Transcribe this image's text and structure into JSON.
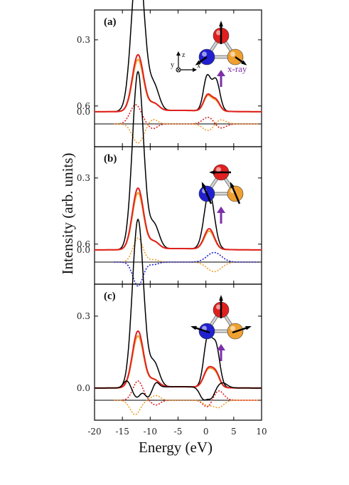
{
  "chart_data": {
    "type": "line",
    "xlabel": "Energy (eV)",
    "ylabel": "Intensity (arb. units)",
    "xlim": [
      -20,
      10
    ],
    "x_ticks": [
      "-20",
      "-15",
      "-10",
      "-5",
      "0",
      "5",
      "10"
    ],
    "y_ticks": [
      "0.0",
      "0.3",
      "0.6"
    ],
    "ylim": [
      -0.2,
      0.8
    ],
    "inset_axes": {
      "z": "z",
      "x": "x",
      "y": "y",
      "arrow_label": "x-ray"
    },
    "colors": {
      "total": "#000000",
      "red": "#e02020",
      "orange": "#f0a030",
      "blue": "#2020d0",
      "xray": "#7b2fa8"
    },
    "panels": [
      {
        "label": "(a)",
        "series": [
          {
            "color": "#000000",
            "style": "solid",
            "peaks": [
              [
                -12.2,
                0.67,
                1.1
              ],
              [
                -9.3,
                0.1,
                0.9
              ],
              [
                0.2,
                0.14,
                0.65
              ],
              [
                1.8,
                0.13,
                0.7
              ]
            ]
          },
          {
            "color": "#f0a030",
            "style": "solid",
            "peaks": [
              [
                -12.2,
                0.215,
                1.0
              ],
              [
                -9.3,
                0.03,
                0.9
              ],
              [
                0.3,
                0.06,
                0.7
              ],
              [
                1.8,
                0.04,
                0.7
              ]
            ]
          },
          {
            "color": "#e02020",
            "style": "solid",
            "peaks": [
              [
                -12.2,
                0.235,
                1.0
              ],
              [
                -9.3,
                0.03,
                0.9
              ],
              [
                0.3,
                0.065,
                0.7
              ],
              [
                1.8,
                0.045,
                0.7
              ]
            ]
          },
          {
            "color": "#e02020",
            "style": "dotted",
            "peaks": [
              [
                -12.6,
                0.08,
                1.0
              ],
              [
                -9.5,
                -0.02,
                0.8
              ],
              [
                0.5,
                0.03,
                1.0
              ],
              [
                2.5,
                -0.02,
                1.0
              ]
            ]
          },
          {
            "color": "#f0a030",
            "style": "dotted",
            "peaks": [
              [
                -12.2,
                -0.08,
                1.0
              ],
              [
                -9.5,
                0.02,
                0.8
              ],
              [
                0.5,
                -0.03,
                1.0
              ],
              [
                2.5,
                0.02,
                1.0
              ]
            ]
          }
        ]
      },
      {
        "label": "(b)",
        "series": [
          {
            "color": "#000000",
            "style": "solid",
            "peaks": [
              [
                -12.2,
                0.74,
                1.0
              ],
              [
                -9.3,
                0.1,
                0.9
              ],
              [
                0.6,
                0.24,
                0.9
              ]
            ]
          },
          {
            "color": "#f0a030",
            "style": "solid",
            "peaks": [
              [
                -12.2,
                0.235,
                1.0
              ],
              [
                -9.3,
                0.03,
                0.9
              ],
              [
                0.6,
                0.075,
                0.9
              ]
            ]
          },
          {
            "color": "#e02020",
            "style": "solid",
            "peaks": [
              [
                -12.2,
                0.255,
                1.0
              ],
              [
                -9.3,
                0.03,
                0.9
              ],
              [
                0.6,
                0.085,
                0.9
              ]
            ]
          },
          {
            "color": "#f0a030",
            "style": "dotted",
            "peaks": [
              [
                -12.2,
                0.1,
                0.9
              ],
              [
                -9.3,
                0.01,
                0.8
              ],
              [
                1.5,
                -0.04,
                1.3
              ]
            ]
          },
          {
            "color": "#2020d0",
            "style": "dotted",
            "peaks": [
              [
                -12.2,
                -0.1,
                0.9
              ],
              [
                -9.3,
                -0.01,
                0.8
              ],
              [
                1.5,
                0.04,
                1.3
              ]
            ]
          }
        ]
      },
      {
        "label": "(c)",
        "series": [
          {
            "color": "#000000",
            "style": "solid",
            "peaks": [
              [
                -12.2,
                0.7,
                1.0
              ],
              [
                -9.3,
                0.1,
                0.9
              ],
              [
                0.3,
                0.2,
                0.7
              ],
              [
                1.8,
                0.17,
                0.7
              ]
            ]
          },
          {
            "color": "#f0a030",
            "style": "solid",
            "peaks": [
              [
                -12.2,
                0.215,
                1.0
              ],
              [
                -9.3,
                0.03,
                0.9
              ],
              [
                0.4,
                0.07,
                0.8
              ],
              [
                1.8,
                0.05,
                0.7
              ]
            ]
          },
          {
            "color": "#e02020",
            "style": "solid",
            "peaks": [
              [
                -12.2,
                0.235,
                1.0
              ],
              [
                -9.3,
                0.03,
                0.9
              ],
              [
                0.4,
                0.075,
                0.8
              ],
              [
                1.8,
                0.055,
                0.7
              ]
            ]
          },
          {
            "color": "#e02020",
            "style": "dotted",
            "peaks": [
              [
                -12.2,
                0.08,
                0.9
              ],
              [
                -9.0,
                -0.02,
                0.8
              ],
              [
                0.3,
                -0.03,
                0.8
              ],
              [
                2.3,
                0.04,
                0.9
              ]
            ]
          },
          {
            "color": "#f0a030",
            "style": "dotted",
            "peaks": [
              [
                -12.7,
                -0.06,
                0.9
              ],
              [
                -9.0,
                0.02,
                0.8
              ],
              [
                0.3,
                -0.02,
                0.8
              ],
              [
                2.3,
                -0.03,
                0.9
              ]
            ]
          },
          {
            "color": "#000000",
            "style": "solid",
            "peaks": [
              [
                -14.2,
                0.03,
                0.6
              ],
              [
                -12.4,
                -0.04,
                0.7
              ],
              [
                -10.4,
                -0.04,
                0.6
              ],
              [
                -8.9,
                0.02,
                0.5
              ],
              [
                -0.4,
                -0.05,
                0.7
              ],
              [
                1.0,
                -0.04,
                0.6
              ],
              [
                3.0,
                0.02,
                0.8
              ]
            ]
          }
        ]
      }
    ]
  }
}
